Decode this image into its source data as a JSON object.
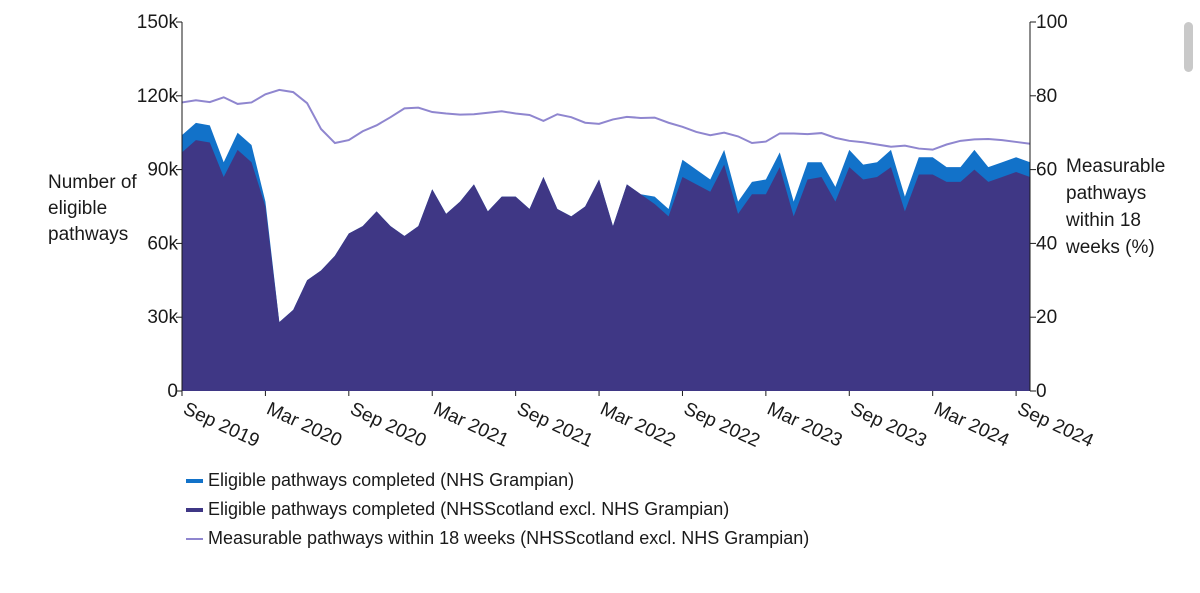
{
  "chart_data": {
    "type": "area",
    "x_tick_labels": [
      "Sep 2019",
      "Mar 2020",
      "Sep 2020",
      "Mar 2021",
      "Sep 2021",
      "Mar 2022",
      "Sep 2022",
      "Mar 2023",
      "Sep 2023",
      "Mar 2024",
      "Sep 2024"
    ],
    "x_range": [
      "Sep 2019",
      "Sep 2024"
    ],
    "y_left": {
      "label": [
        "Number of",
        "eligible",
        "pathways"
      ],
      "ticks": [
        "0",
        "30k",
        "60k",
        "90k",
        "120k",
        "150k"
      ],
      "range": [
        0,
        150000
      ]
    },
    "y_right": {
      "label": [
        "Measurable",
        "pathways",
        "within 18",
        "weeks (%)"
      ],
      "ticks": [
        "0",
        "20",
        "40",
        "60",
        "80",
        "100"
      ],
      "range": [
        0,
        100
      ]
    },
    "grid": false,
    "legend_position": "bottom-left",
    "series": [
      {
        "name": "Eligible pathways completed (NHSScotland excl. NHS Grampian)",
        "kind": "area",
        "axis": "left",
        "stacked_base": true,
        "color": "#3f3785",
        "legend_swatch": "thick-line",
        "values": [
          97000,
          102000,
          101000,
          87000,
          98000,
          93000,
          75000,
          28000,
          33000,
          45000,
          49000,
          55000,
          64000,
          67000,
          73000,
          67000,
          63000,
          67000,
          82000,
          72000,
          77000,
          84000,
          73000,
          79000,
          79000,
          74000,
          87000,
          74000,
          71000,
          75000,
          86000,
          67000,
          84000,
          80000,
          76000,
          71000,
          87000,
          84000,
          81000,
          92000,
          72000,
          80000,
          80000,
          91000,
          71000,
          86000,
          87000,
          77000,
          91000,
          86000,
          87000,
          91000,
          73000,
          88000,
          88000,
          85000,
          85000,
          90000,
          85000,
          87000,
          89000,
          87000
        ]
      },
      {
        "name": "Eligible pathways completed (NHS Grampian)",
        "kind": "area",
        "axis": "left",
        "stacked_on": "previous",
        "color": "#1272c9",
        "legend_swatch": "thick-line",
        "values": [
          7000,
          7000,
          7000,
          6000,
          7000,
          7000,
          2000,
          0,
          0,
          0,
          0,
          0,
          0,
          0,
          0,
          0,
          0,
          0,
          0,
          0,
          0,
          0,
          0,
          0,
          0,
          0,
          0,
          0,
          0,
          0,
          0,
          0,
          0,
          0,
          3000,
          3000,
          7000,
          6000,
          5000,
          6000,
          5000,
          5000,
          6000,
          6000,
          6000,
          7000,
          6000,
          6000,
          7000,
          6000,
          6000,
          7000,
          6000,
          7000,
          7000,
          6000,
          6000,
          8000,
          6000,
          6000,
          6000,
          6000
        ]
      },
      {
        "name": "Measurable pathways within 18 weeks (NHSScotland excl. NHS Grampian)",
        "kind": "line",
        "axis": "right",
        "color": "#8f86cf",
        "legend_swatch": "thin-line",
        "values": [
          78.2,
          78.8,
          78.3,
          79.6,
          77.8,
          78.2,
          80.4,
          81.6,
          81.0,
          78.0,
          71.0,
          67.2,
          68.0,
          70.4,
          72.0,
          74.2,
          76.6,
          76.8,
          75.6,
          75.2,
          74.9,
          75.0,
          75.4,
          75.8,
          75.2,
          74.8,
          73.2,
          75.0,
          74.2,
          72.7,
          72.4,
          73.6,
          74.3,
          74.0,
          74.1,
          72.7,
          71.6,
          70.2,
          69.3,
          70.0,
          69.0,
          67.2,
          67.6,
          69.8,
          69.8,
          69.6,
          69.9,
          68.6,
          67.8,
          67.4,
          66.8,
          66.2,
          66.5,
          65.7,
          65.4,
          66.8,
          67.8,
          68.2,
          68.3,
          68.0,
          67.5,
          67.0
        ]
      }
    ]
  }
}
